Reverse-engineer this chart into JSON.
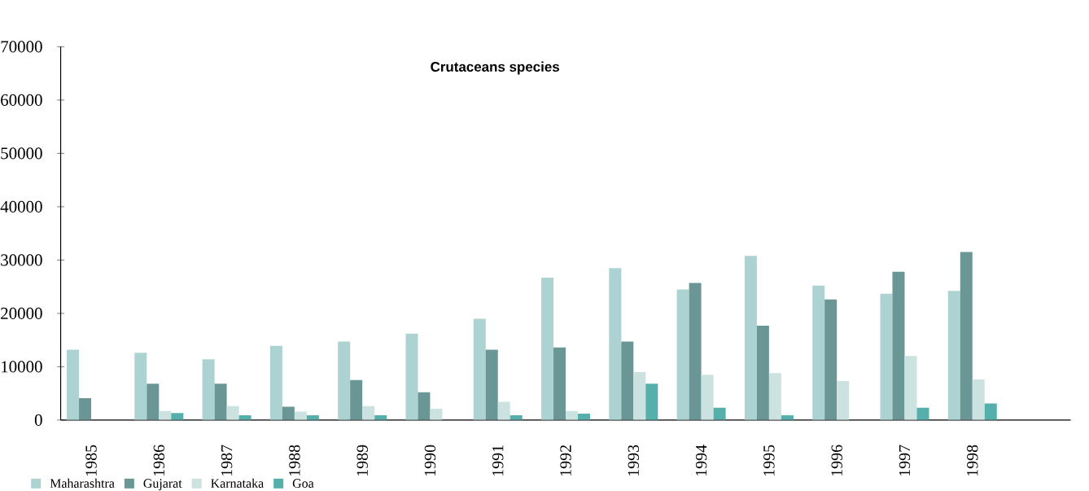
{
  "chart_data": {
    "type": "bar",
    "title": "Crutaceans species",
    "categories": [
      "1985",
      "1986",
      "1987",
      "1988",
      "1989",
      "1990",
      "1991",
      "1992",
      "1993",
      "1994",
      "1995",
      "1996",
      "1997",
      "1998"
    ],
    "series": [
      {
        "name": "Maharashtra",
        "color": "#acd2d1",
        "values": [
          13200,
          12600,
          11400,
          13900,
          14700,
          16200,
          19000,
          26700,
          28500,
          24500,
          30800,
          25200,
          23700,
          24200
        ]
      },
      {
        "name": "Gujarat",
        "color": "#6a9696",
        "values": [
          4100,
          6800,
          6800,
          2500,
          7500,
          5200,
          13200,
          13600,
          14700,
          25700,
          17700,
          22600,
          27800,
          31500
        ]
      },
      {
        "name": "Karnataka",
        "color": "#cce2e0",
        "values": [
          null,
          1700,
          2600,
          1600,
          2600,
          2100,
          3400,
          1700,
          9000,
          8500,
          8800,
          7300,
          12000,
          7600
        ]
      },
      {
        "name": "Goa",
        "color": "#55b0ab",
        "values": [
          null,
          1300,
          900,
          900,
          900,
          null,
          900,
          1200,
          6800,
          2300,
          900,
          null,
          2300,
          3100
        ]
      }
    ],
    "ylim": [
      0,
      70000
    ],
    "yticks": [
      0,
      10000,
      20000,
      30000,
      40000,
      50000,
      60000,
      70000
    ],
    "legend": "bottom"
  }
}
